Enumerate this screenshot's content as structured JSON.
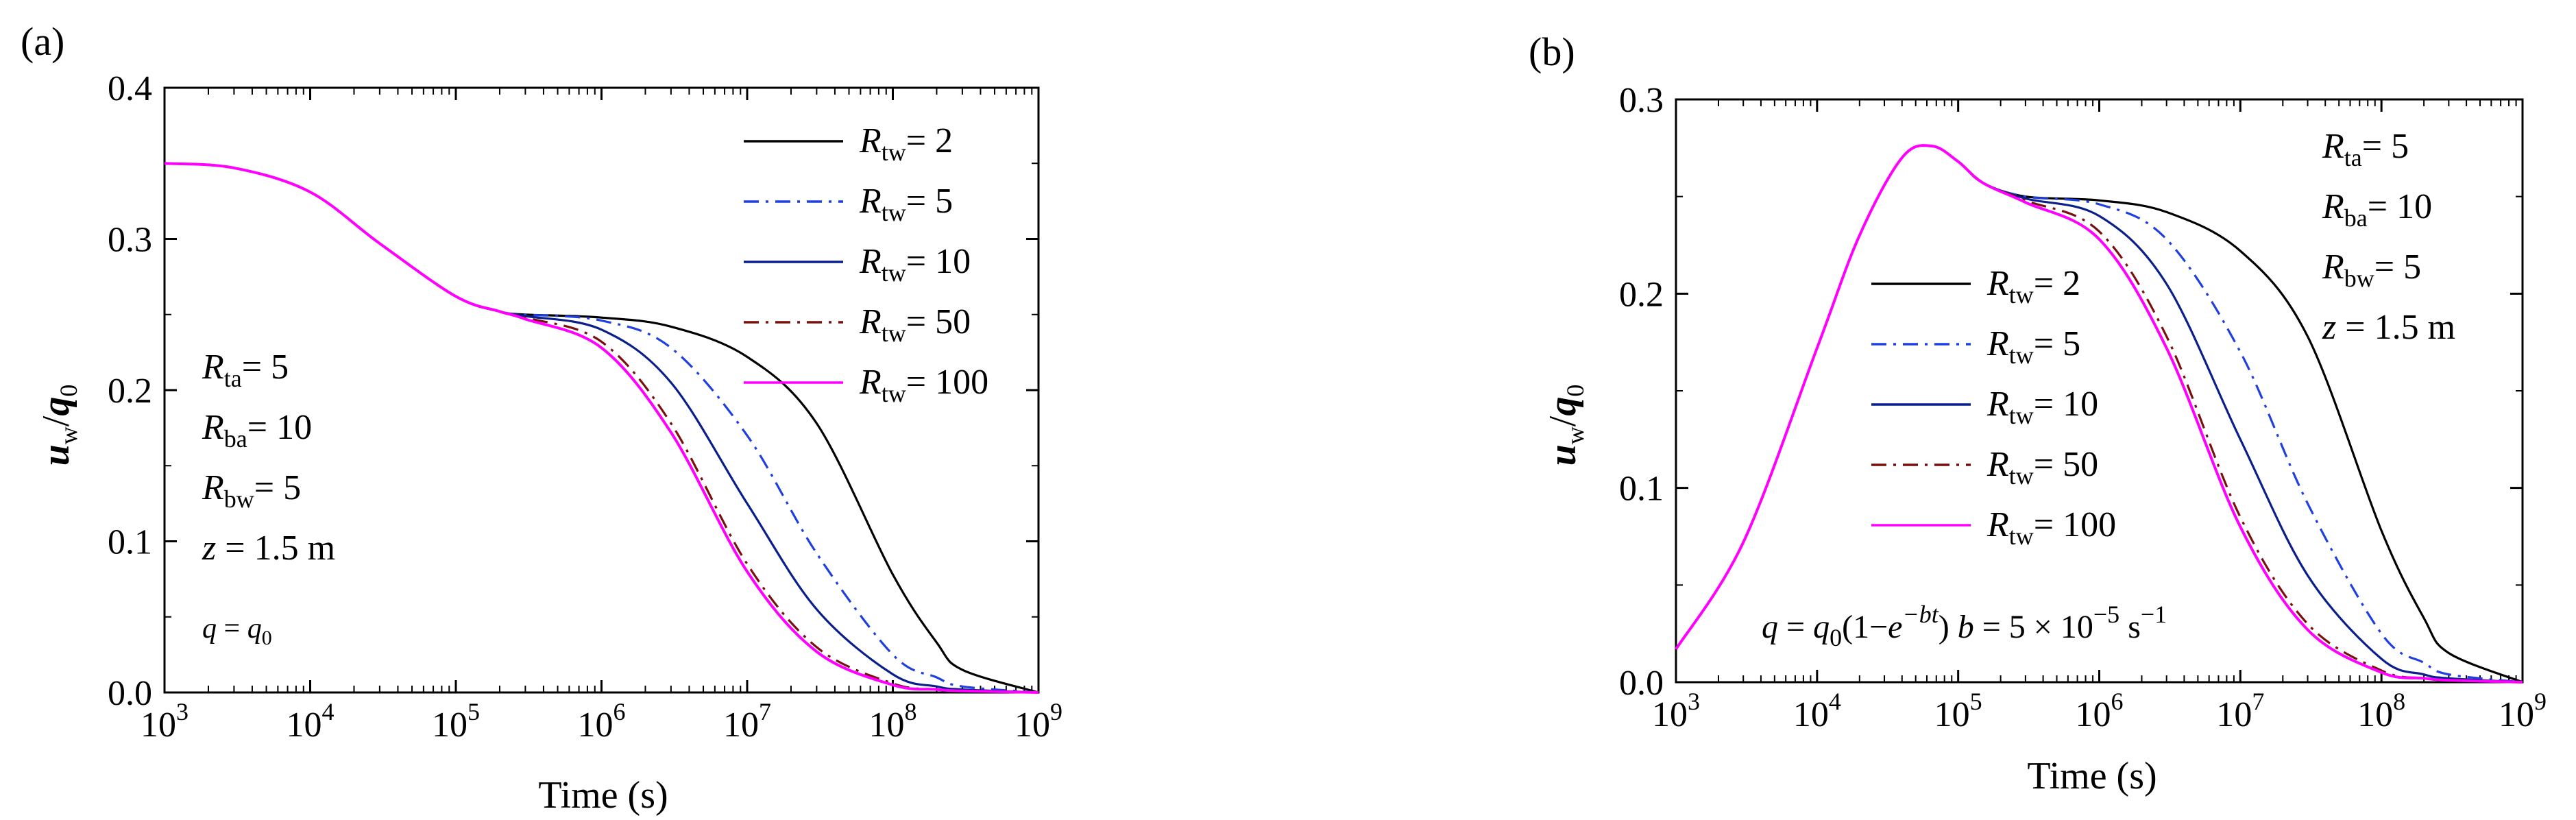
{
  "chart_data": [
    {
      "panel": "(a)",
      "type": "line",
      "xlabel": "Time (s)",
      "ylabel": "u_w/q_0",
      "xscale": "log",
      "xlim": [
        1000,
        1000000000
      ],
      "ylim": [
        0,
        0.4
      ],
      "yticks": [
        "0.0",
        "0.1",
        "0.2",
        "0.3",
        "0.4"
      ],
      "xtick_exponents": [
        "3",
        "4",
        "5",
        "6",
        "7",
        "8",
        "9"
      ],
      "legend_position": "top-right",
      "parameters": [
        "R_ta = 5",
        "R_ba = 10",
        "R_bw = 5",
        "z = 1.5 m"
      ],
      "annotation": "q = q_0",
      "series": [
        {
          "name": "R_tw = 2",
          "color": "#000000",
          "dash": "solid",
          "x": [
            1000,
            3000,
            10000,
            30000,
            100000,
            200000,
            300000,
            1000000,
            3000000,
            10000000,
            30000000,
            100000000,
            200000000,
            300000000,
            1000000000
          ],
          "y": [
            0.35,
            0.347,
            0.331,
            0.297,
            0.262,
            0.252,
            0.25,
            0.248,
            0.242,
            0.222,
            0.178,
            0.078,
            0.033,
            0.015,
            0.0
          ]
        },
        {
          "name": "R_tw = 5",
          "color": "#1f3fe0",
          "dash": "dashdot",
          "x": [
            1000,
            3000,
            10000,
            30000,
            100000,
            200000,
            300000,
            1000000,
            3000000,
            10000000,
            30000000,
            100000000,
            200000000,
            300000000,
            1000000000
          ],
          "y": [
            0.35,
            0.347,
            0.331,
            0.297,
            0.262,
            0.252,
            0.25,
            0.246,
            0.228,
            0.17,
            0.092,
            0.025,
            0.01,
            0.004,
            0.0
          ]
        },
        {
          "name": "R_tw = 10",
          "color": "#0a1e8c",
          "dash": "solid",
          "x": [
            1000,
            3000,
            10000,
            30000,
            100000,
            200000,
            300000,
            1000000,
            3000000,
            10000000,
            30000000,
            100000000,
            200000000,
            300000000,
            1000000000
          ],
          "y": [
            0.35,
            0.347,
            0.331,
            0.297,
            0.262,
            0.252,
            0.249,
            0.24,
            0.205,
            0.125,
            0.055,
            0.012,
            0.004,
            0.002,
            0.0
          ]
        },
        {
          "name": "R_tw = 50",
          "color": "#7a0f0f",
          "dash": "dashdot",
          "x": [
            1000,
            3000,
            10000,
            30000,
            100000,
            200000,
            300000,
            1000000,
            3000000,
            10000000,
            30000000,
            100000000,
            200000000,
            300000000,
            1000000000
          ],
          "y": [
            0.35,
            0.347,
            0.331,
            0.297,
            0.262,
            0.252,
            0.248,
            0.232,
            0.178,
            0.085,
            0.03,
            0.006,
            0.002,
            0.001,
            0.0
          ]
        },
        {
          "name": "R_tw = 100",
          "color": "#ff00ff",
          "dash": "solid",
          "x": [
            1000,
            3000,
            10000,
            30000,
            100000,
            200000,
            300000,
            1000000,
            3000000,
            10000000,
            30000000,
            100000000,
            200000000,
            300000000,
            1000000000
          ],
          "y": [
            0.35,
            0.347,
            0.331,
            0.297,
            0.262,
            0.252,
            0.247,
            0.228,
            0.172,
            0.08,
            0.027,
            0.005,
            0.002,
            0.001,
            0.0
          ]
        }
      ]
    },
    {
      "panel": "(b)",
      "type": "line",
      "xlabel": "Time (s)",
      "ylabel": "u_w/q_0",
      "xscale": "log",
      "xlim": [
        1000,
        1000000000
      ],
      "ylim": [
        0,
        0.3
      ],
      "yticks": [
        "0.0",
        "0.1",
        "0.2",
        "0.3"
      ],
      "xtick_exponents": [
        "3",
        "4",
        "5",
        "6",
        "7",
        "8",
        "9"
      ],
      "legend_position": "center-left",
      "parameters": [
        "R_ta = 5",
        "R_ba = 10",
        "R_bw = 5",
        "z = 1.5 m"
      ],
      "annotation": "q = q_0(1−e^−bt) b = 5 × 10^−5 s^−1",
      "series": [
        {
          "name": "R_tw = 2",
          "color": "#000000",
          "dash": "solid",
          "x": [
            1000,
            3000,
            10000,
            20000,
            40000,
            65000,
            100000,
            150000,
            300000,
            1000000,
            3000000,
            10000000,
            30000000,
            100000000,
            200000000,
            300000000,
            1000000000
          ],
          "y": [
            0.017,
            0.072,
            0.172,
            0.23,
            0.27,
            0.276,
            0.268,
            0.257,
            0.25,
            0.248,
            0.242,
            0.222,
            0.178,
            0.078,
            0.033,
            0.015,
            0.0
          ]
        },
        {
          "name": "R_tw = 5",
          "color": "#1f3fe0",
          "dash": "dashdot",
          "x": [
            1000,
            3000,
            10000,
            20000,
            40000,
            65000,
            100000,
            150000,
            300000,
            1000000,
            3000000,
            10000000,
            30000000,
            100000000,
            200000000,
            300000000,
            1000000000
          ],
          "y": [
            0.017,
            0.072,
            0.172,
            0.23,
            0.27,
            0.276,
            0.268,
            0.257,
            0.25,
            0.246,
            0.228,
            0.17,
            0.092,
            0.025,
            0.01,
            0.004,
            0.0
          ]
        },
        {
          "name": "R_tw = 10",
          "color": "#0a1e8c",
          "dash": "solid",
          "x": [
            1000,
            3000,
            10000,
            20000,
            40000,
            65000,
            100000,
            150000,
            300000,
            1000000,
            3000000,
            10000000,
            30000000,
            100000000,
            200000000,
            300000000,
            1000000000
          ],
          "y": [
            0.017,
            0.072,
            0.172,
            0.23,
            0.27,
            0.276,
            0.268,
            0.257,
            0.249,
            0.24,
            0.205,
            0.125,
            0.055,
            0.012,
            0.004,
            0.002,
            0.0
          ]
        },
        {
          "name": "R_tw = 50",
          "color": "#7a0f0f",
          "dash": "dashdot",
          "x": [
            1000,
            3000,
            10000,
            20000,
            40000,
            65000,
            100000,
            150000,
            300000,
            1000000,
            3000000,
            10000000,
            30000000,
            100000000,
            200000000,
            300000000,
            1000000000
          ],
          "y": [
            0.017,
            0.072,
            0.172,
            0.23,
            0.27,
            0.276,
            0.268,
            0.257,
            0.248,
            0.232,
            0.178,
            0.085,
            0.03,
            0.006,
            0.002,
            0.001,
            0.0
          ]
        },
        {
          "name": "R_tw = 100",
          "color": "#ff00ff",
          "dash": "solid",
          "x": [
            1000,
            3000,
            10000,
            20000,
            40000,
            65000,
            100000,
            150000,
            300000,
            1000000,
            3000000,
            10000000,
            30000000,
            100000000,
            200000000,
            300000000,
            1000000000
          ],
          "y": [
            0.017,
            0.072,
            0.172,
            0.23,
            0.27,
            0.276,
            0.268,
            0.257,
            0.247,
            0.228,
            0.172,
            0.08,
            0.027,
            0.005,
            0.002,
            0.001,
            0.0
          ]
        }
      ]
    }
  ],
  "text": {
    "a": {
      "panel_label": "(a)",
      "xlabel": "Time (s)",
      "ylabel_main": "u",
      "ylabel_sub": "w",
      "ylabel_slash": "/",
      "ylabel_q": "q",
      "ylabel_q_sub": "0",
      "tick_base": "10",
      "legend_symbol": "R",
      "legend_sub": "tw",
      "legend_values": [
        "= 2",
        "= 5",
        "= 10",
        "= 50",
        "= 100"
      ],
      "params": [
        {
          "sym": "R",
          "sub": "ta",
          "rest": "= 5"
        },
        {
          "sym": "R",
          "sub": "ba",
          "rest": "= 10"
        },
        {
          "sym": "R",
          "sub": "bw",
          "rest": "= 5"
        },
        {
          "sym": "z",
          "sub": "",
          "rest": " = 1.5 m"
        }
      ],
      "annot_q": "q",
      "annot_eq": " = ",
      "annot_q0": "q",
      "annot_q0_sub": "0"
    },
    "b": {
      "panel_label": "(b)",
      "xlabel": "Time (s)",
      "ylabel_main": "u",
      "ylabel_sub": "w",
      "ylabel_slash": "/",
      "ylabel_q": "q",
      "ylabel_q_sub": "0",
      "tick_base": "10",
      "legend_symbol": "R",
      "legend_sub": "tw",
      "legend_values": [
        "= 2",
        "= 5",
        "= 10",
        "= 50",
        "= 100"
      ],
      "params": [
        {
          "sym": "R",
          "sub": "ta",
          "rest": "= 5"
        },
        {
          "sym": "R",
          "sub": "ba",
          "rest": "= 10"
        },
        {
          "sym": "R",
          "sub": "bw",
          "rest": "= 5"
        },
        {
          "sym": "z",
          "sub": "",
          "rest": " = 1.5 m"
        }
      ],
      "annot_parts": {
        "q": "q",
        "eq": " = ",
        "q0": "q",
        "q0_sub": "0",
        "paren_open": "(1−",
        "e": "e",
        "exp": "−bt",
        "paren_close": ")",
        "b": " b",
        "b_eq": " = 5 × 10",
        "b_exp": "−5",
        "unit": " s",
        "unit_exp": "−1"
      }
    }
  }
}
